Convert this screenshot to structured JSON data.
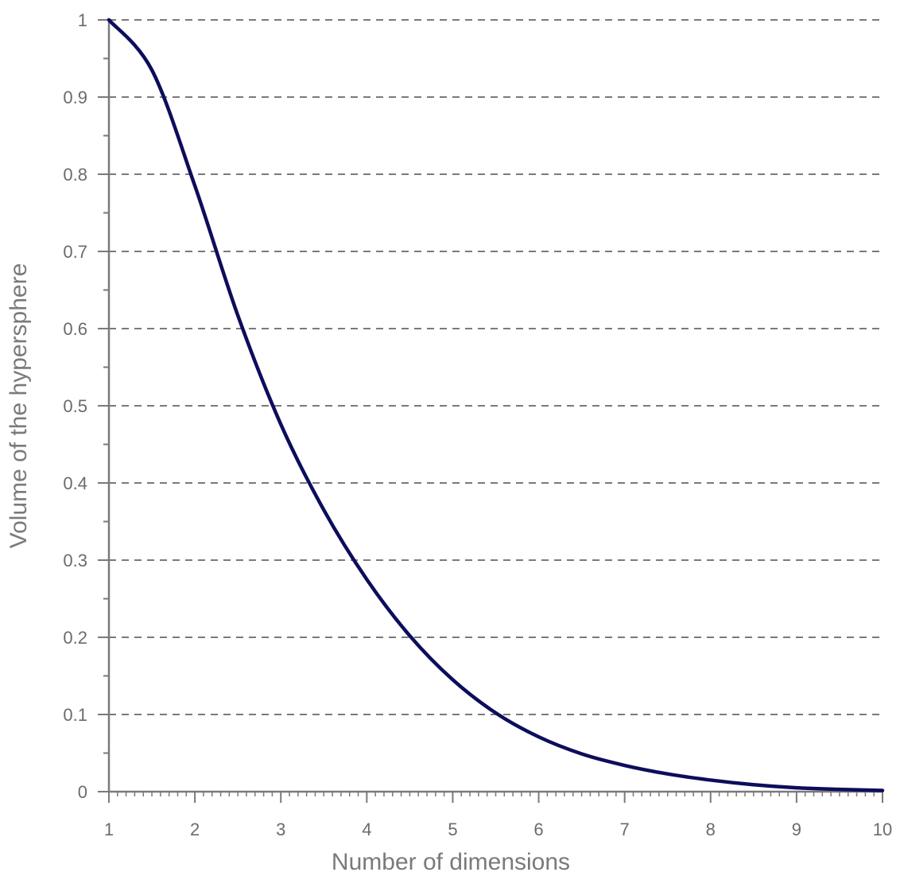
{
  "chart_data": {
    "type": "line",
    "title": "",
    "xlabel": "Number of dimensions",
    "ylabel": "Volume of the hypersphere",
    "xlim": [
      1,
      10
    ],
    "ylim": [
      0,
      1
    ],
    "x_ticks": [
      "1",
      "2",
      "3",
      "4",
      "5",
      "6",
      "7",
      "8",
      "9",
      "10"
    ],
    "y_ticks": [
      "0",
      "0.1",
      "0.2",
      "0.3",
      "0.4",
      "0.5",
      "0.6",
      "0.7",
      "0.8",
      "0.9",
      "1"
    ],
    "grid": "horizontal dashed",
    "legend": "none",
    "colors": {
      "line": "#0d0d5c",
      "axis": "#7a7a7a",
      "grid": "#7a7a7a",
      "text": "#6b6b6b"
    },
    "series": [
      {
        "x": [
          1,
          1.5,
          2,
          2.5,
          3,
          3.5,
          4,
          4.5,
          5,
          5.5,
          6,
          6.5,
          7,
          7.5,
          8,
          8.5,
          9,
          9.5,
          10
        ],
        "values": [
          1.0,
          0.935,
          0.785,
          0.617,
          0.476,
          0.365,
          0.275,
          0.202,
          0.145,
          0.102,
          0.071,
          0.049,
          0.034,
          0.023,
          0.015,
          0.009,
          0.005,
          0.003,
          0.0015
        ]
      }
    ]
  }
}
